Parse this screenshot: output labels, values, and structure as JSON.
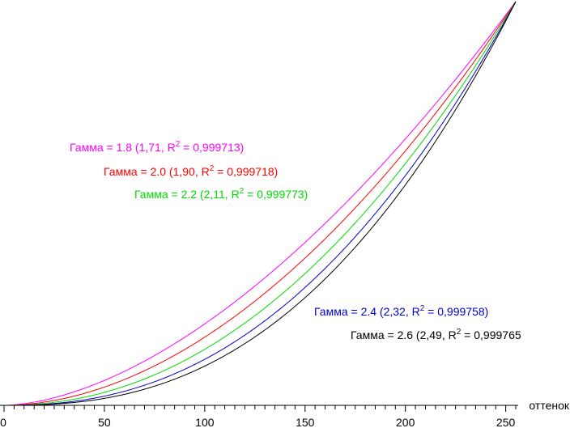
{
  "chart_data": {
    "type": "line",
    "title": "",
    "xlabel": "оттенок",
    "ylabel": "",
    "xlim": [
      0,
      255
    ],
    "ylim": [
      0,
      1
    ],
    "x_ticks": [
      0,
      50,
      100,
      150,
      200,
      250
    ],
    "x_tick_labels": [
      "0",
      "50",
      "100",
      "150",
      "200",
      "250"
    ],
    "grid": false,
    "series": [
      {
        "gamma": 1.71,
        "color": "#ff00ff",
        "label": {
          "pre": "Гамма = 1.8 (1,71, R",
          "sup": "2",
          "post": " = 0,999713)"
        }
      },
      {
        "gamma": 1.9,
        "color": "#ff0000",
        "label": {
          "pre": "Гамма = 2.0 (1,90, R",
          "sup": "2",
          "post": " = 0,999718)"
        }
      },
      {
        "gamma": 2.11,
        "color": "#00dd00",
        "label": {
          "pre": "Гамма = 2.2 (2,11, R",
          "sup": "2",
          "post": " = 0,999773)"
        }
      },
      {
        "gamma": 2.32,
        "color": "#0000cc",
        "label": {
          "pre": "Гамма = 2.4 (2,32, R",
          "sup": "2",
          "post": " = 0,999758)"
        }
      },
      {
        "gamma": 2.49,
        "color": "#000000",
        "label": {
          "pre": "Гамма = 2.6 (2,49, R",
          "sup": "2",
          "post": " = 0,999765"
        }
      }
    ]
  }
}
